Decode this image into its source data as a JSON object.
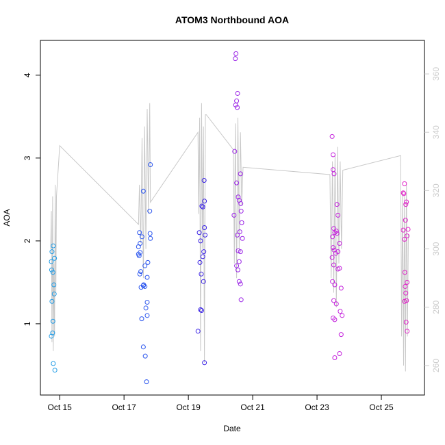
{
  "chart_data": {
    "type": "scatter",
    "title": "ATOM3 Northbound AOA",
    "x_label": "Date",
    "y_label": "AOA",
    "xlim": [
      14.4,
      26.34
    ],
    "xticks": [
      {
        "value": 15,
        "label": "Oct 15"
      },
      {
        "value": 17,
        "label": "Oct 17"
      },
      {
        "value": 19,
        "label": "Oct 19"
      },
      {
        "value": 21,
        "label": "Oct 21"
      },
      {
        "value": 23,
        "label": "Oct 23"
      },
      {
        "value": 25,
        "label": "Oct 25"
      }
    ],
    "ylim": [
      0.14,
      4.42
    ],
    "yticks": [
      1,
      2,
      3,
      4
    ],
    "y2lim": [
      249.9,
      371.5
    ],
    "y2ticks": [
      260,
      280,
      300,
      320,
      340,
      360
    ],
    "y2_color": "#cccccc",
    "series": [
      {
        "color": "#1e9be6",
        "x": [
          14.8,
          14.76,
          14.84,
          14.74,
          14.75,
          14.79,
          14.82,
          14.83,
          14.76,
          14.79,
          14.78,
          14.74,
          14.8,
          14.85
        ],
        "values": [
          1.94,
          1.87,
          1.79,
          1.75,
          1.65,
          1.62,
          1.47,
          1.36,
          1.27,
          1.03,
          0.89,
          0.85,
          0.52,
          0.44
        ]
      },
      {
        "color": "#2a55ee",
        "x": [
          17.82,
          17.6,
          17.8,
          17.48,
          17.81,
          17.56,
          17.82,
          17.5,
          17.45,
          17.5,
          17.45,
          17.47,
          17.74,
          17.65,
          17.52,
          17.49,
          17.72,
          17.61,
          17.6,
          17.65,
          17.53,
          17.72,
          17.68,
          17.72,
          17.55,
          17.6,
          17.66,
          17.7
        ],
        "values": [
          2.92,
          2.6,
          2.36,
          2.1,
          2.09,
          2.05,
          2.03,
          1.97,
          1.93,
          1.86,
          1.84,
          1.82,
          1.74,
          1.7,
          1.63,
          1.6,
          1.56,
          1.47,
          1.46,
          1.45,
          1.44,
          1.26,
          1.19,
          1.1,
          1.06,
          0.72,
          0.61,
          0.3
        ]
      },
      {
        "color": "#3a22e6",
        "x": [
          19.49,
          19.5,
          19.42,
          19.45,
          19.5,
          19.34,
          19.52,
          19.38,
          19.48,
          19.45,
          19.36,
          19.4,
          19.47,
          19.38,
          19.41,
          19.3,
          19.5
        ],
        "values": [
          2.73,
          2.48,
          2.42,
          2.41,
          2.16,
          2.1,
          2.07,
          2.0,
          1.87,
          1.81,
          1.74,
          1.6,
          1.51,
          1.17,
          1.16,
          0.91,
          0.53
        ]
      },
      {
        "color": "#9a22e6",
        "x": [
          20.48,
          20.46,
          20.53,
          20.5,
          20.47,
          20.52,
          20.44,
          20.62,
          20.5,
          20.55,
          20.58,
          20.63,
          20.64,
          20.42,
          20.66,
          20.6,
          20.52,
          20.68,
          20.55,
          20.62,
          20.58,
          20.5,
          20.54,
          20.58,
          20.62,
          20.64
        ],
        "values": [
          4.26,
          4.2,
          3.78,
          3.69,
          3.64,
          3.61,
          3.08,
          2.81,
          2.7,
          2.53,
          2.49,
          2.45,
          2.36,
          2.31,
          2.22,
          2.11,
          2.07,
          2.03,
          1.88,
          1.87,
          1.75,
          1.7,
          1.65,
          1.51,
          1.48,
          1.29
        ]
      },
      {
        "color": "#c422dc",
        "x": [
          23.47,
          23.5,
          23.5,
          23.53,
          23.62,
          23.65,
          23.52,
          23.6,
          23.55,
          23.62,
          23.48,
          23.7,
          23.5,
          23.53,
          23.65,
          23.58,
          23.47,
          23.52,
          23.7,
          23.65,
          23.48,
          23.55,
          23.75,
          23.52,
          23.6,
          23.72,
          23.78,
          23.5,
          23.55,
          23.75,
          23.7,
          23.55
        ],
        "values": [
          3.26,
          3.04,
          2.86,
          2.81,
          2.44,
          2.31,
          2.15,
          2.12,
          2.1,
          2.09,
          2.05,
          1.97,
          1.92,
          1.89,
          1.87,
          1.85,
          1.8,
          1.71,
          1.67,
          1.66,
          1.51,
          1.47,
          1.43,
          1.28,
          1.24,
          1.15,
          1.1,
          1.07,
          1.05,
          0.87,
          0.64,
          0.59
        ]
      },
      {
        "color": "#e022c8",
        "x": [
          25.72,
          25.68,
          25.7,
          25.78,
          25.76,
          25.75,
          25.83,
          25.68,
          25.8,
          25.72,
          25.73,
          25.8,
          25.74,
          25.76,
          25.78,
          25.72,
          25.77,
          25.8
        ],
        "values": [
          2.69,
          2.58,
          2.57,
          2.47,
          2.44,
          2.25,
          2.14,
          2.13,
          2.06,
          2.02,
          1.62,
          1.5,
          1.45,
          1.37,
          1.28,
          1.27,
          1.02,
          0.91
        ]
      }
    ],
    "line": {
      "color": "#c8c8c8",
      "axis": "y2",
      "x": [
        14.72,
        14.74,
        14.76,
        14.78,
        14.8,
        14.82,
        14.84,
        14.86,
        14.88,
        14.9,
        15.0,
        17.45,
        17.48,
        17.52,
        17.56,
        17.6,
        17.64,
        17.68,
        17.72,
        17.76,
        17.8,
        17.82,
        19.3,
        19.32,
        19.35,
        19.38,
        19.41,
        19.44,
        19.47,
        19.5,
        19.53,
        19.56,
        20.4,
        20.43,
        20.46,
        20.5,
        20.54,
        20.58,
        20.62,
        20.66,
        20.7,
        23.4,
        23.44,
        23.48,
        23.52,
        23.56,
        23.6,
        23.64,
        23.68,
        23.72,
        23.76,
        23.8,
        25.6,
        25.63,
        25.66,
        25.69,
        25.72,
        25.75,
        25.78,
        25.81,
        25.84
      ],
      "values": [
        300,
        313,
        268,
        318,
        265,
        295,
        270,
        322,
        285,
        318,
        335.4,
        308.4,
        322,
        302,
        338,
        290,
        342,
        300,
        348,
        312,
        350,
        316,
        340,
        312,
        345,
        265,
        350,
        300,
        342,
        261,
        346,
        346,
        334,
        295,
        343,
        290,
        345,
        300,
        340,
        315,
        328,
        325.5,
        290,
        330,
        285,
        332,
        280,
        335,
        295,
        330,
        300,
        327,
        332,
        270,
        320,
        260,
        318,
        258,
        322,
        270,
        305
      ]
    }
  }
}
